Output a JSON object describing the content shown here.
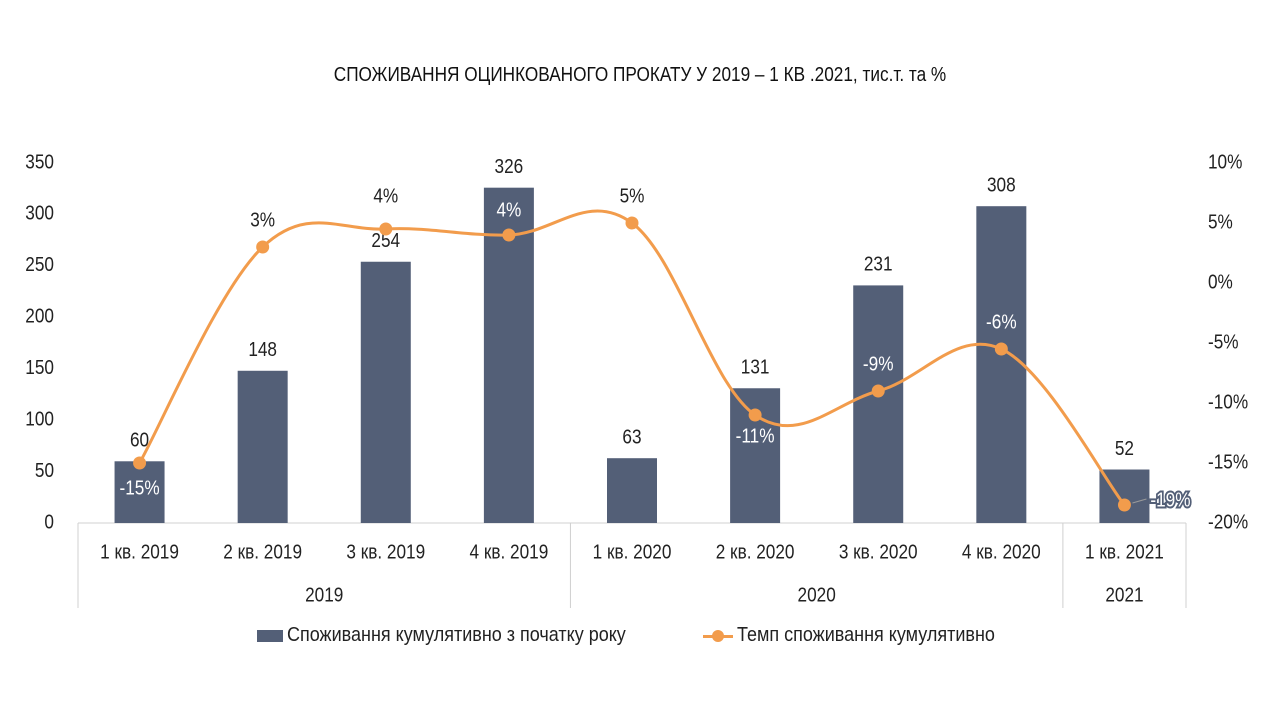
{
  "chart_data": {
    "type": "bar",
    "title": "СПОЖИВАННЯ ОЦИНКОВАНОГО ПРОКАТУ У 2019 – 1 КВ .2021, тис.т. та %",
    "categories": [
      "1 кв. 2019",
      "2 кв. 2019",
      "3 кв. 2019",
      "4 кв. 2019",
      "1 кв. 2020",
      "2 кв. 2020",
      "3 кв. 2020",
      "4 кв. 2020",
      "1 кв. 2021"
    ],
    "groups": [
      {
        "label": "2019",
        "count": 4
      },
      {
        "label": "2020",
        "count": 4
      },
      {
        "label": "2021",
        "count": 1
      }
    ],
    "series": [
      {
        "name": "Споживання кумулятивно з початку року",
        "type": "bar",
        "axis": "left",
        "values": [
          60,
          148,
          254,
          326,
          63,
          131,
          231,
          308,
          52
        ],
        "labels": [
          "60",
          "148",
          "254",
          "326",
          "63",
          "131",
          "231",
          "308",
          "52"
        ]
      },
      {
        "name": "Темп споживання кумулятивно",
        "type": "line",
        "axis": "right",
        "values": [
          -15,
          3,
          4.5,
          4,
          5,
          -11,
          -9,
          -5.5,
          -18.5
        ],
        "labels": [
          "-15%",
          "3%",
          "4%",
          "4%",
          "5%",
          "-11%",
          "-9%",
          "-6%",
          "-19%"
        ]
      }
    ],
    "y_left": {
      "min": 0,
      "max": 350,
      "ticks": [
        "0",
        "50",
        "100",
        "150",
        "200",
        "250",
        "300",
        "350"
      ]
    },
    "y_right": {
      "min": -20,
      "max": 10,
      "ticks": [
        "-20%",
        "-15%",
        "-10%",
        "-5%",
        "0%",
        "5%",
        "10%"
      ]
    },
    "grid": false,
    "legend_position": "bottom",
    "colors": {
      "bar": "#535f77",
      "line": "#f29c4c",
      "axis": "#d0d0d0",
      "text": "#222222"
    }
  }
}
